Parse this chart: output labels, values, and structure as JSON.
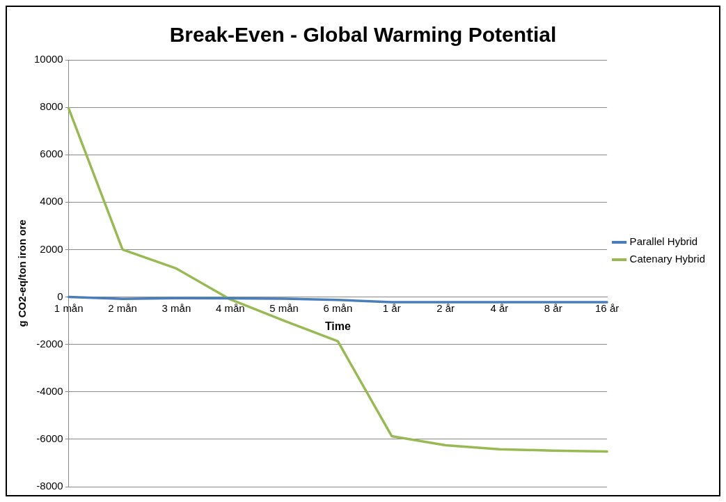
{
  "chart_data": {
    "type": "line",
    "title": "Break-Even - Global Warming Potential",
    "xlabel": "Time",
    "ylabel": "g CO2-eq/ton iron ore",
    "categories": [
      "1 mån",
      "2 mån",
      "3 mån",
      "4 mån",
      "5 mån",
      "6 mån",
      "1 år",
      "2 år",
      "4 år",
      "8 år",
      "16 år"
    ],
    "series": [
      {
        "name": "Parallel Hybrid",
        "color": "#4a7ebb",
        "values": [
          0,
          -80,
          -50,
          -60,
          -70,
          -120,
          -220,
          -220,
          -220,
          -220,
          -220
        ]
      },
      {
        "name": "Catenary Hybrid",
        "color": "#98b954",
        "values": [
          7950,
          2000,
          1200,
          -100,
          -1000,
          -1870,
          -5870,
          -6250,
          -6420,
          -6480,
          -6520
        ]
      }
    ],
    "ylim": [
      -8000,
      10000
    ],
    "yticks": [
      -8000,
      -6000,
      -4000,
      -2000,
      0,
      2000,
      4000,
      6000,
      8000,
      10000
    ],
    "grid": "y",
    "legend": "right",
    "marker": "none",
    "line_style": "solid"
  }
}
